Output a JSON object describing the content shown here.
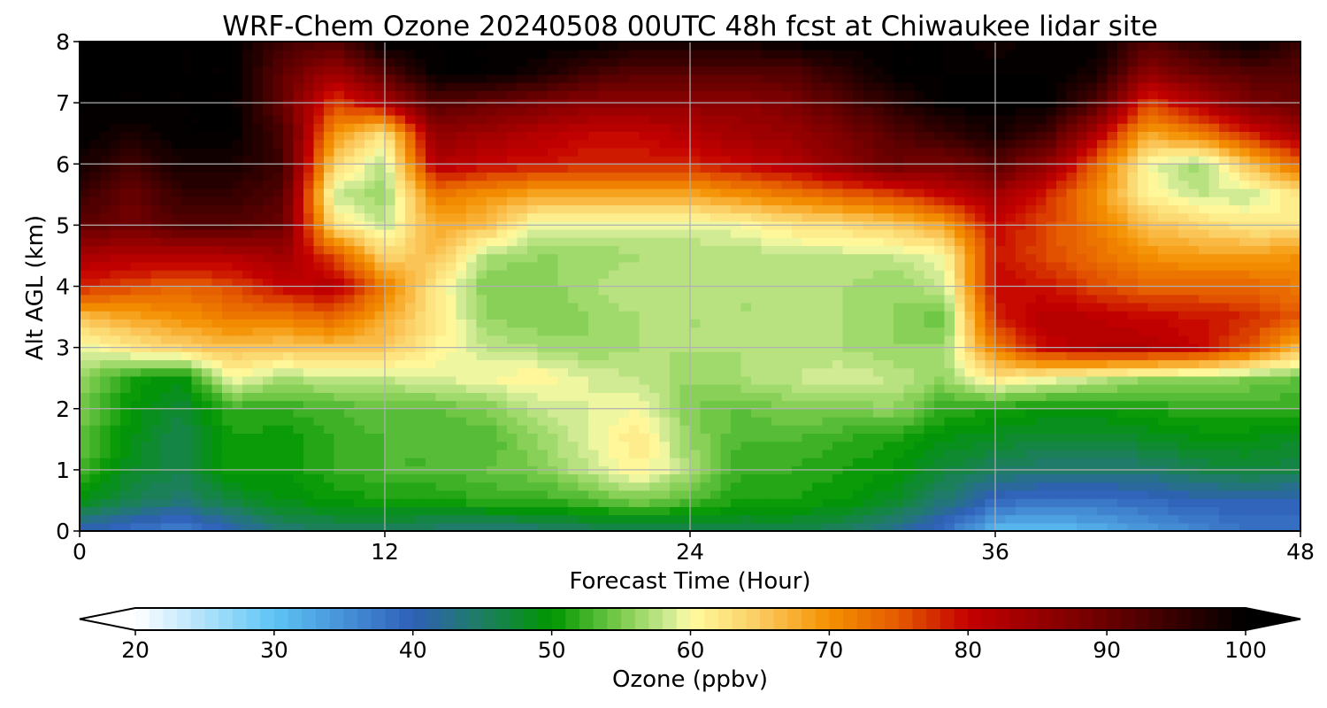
{
  "chart_data": {
    "type": "heatmap",
    "title": "WRF-Chem Ozone  20240508 00UTC 48h fcst at Chiwaukee lidar site",
    "xlabel": "Forecast Time (Hour)",
    "ylabel": "Alt AGL (km)",
    "xlim": [
      0,
      48
    ],
    "ylim": [
      0,
      8
    ],
    "x_ticks": [
      0,
      12,
      24,
      36,
      48
    ],
    "x_tick_labels": [
      "0",
      "12",
      "24",
      "36",
      "48"
    ],
    "y_ticks": [
      0,
      1,
      2,
      3,
      4,
      5,
      6,
      7,
      8
    ],
    "y_tick_labels": [
      "0",
      "1",
      "2",
      "3",
      "4",
      "5",
      "6",
      "7",
      "8"
    ],
    "grid": true,
    "colorbar": {
      "label": "Ozone  (ppbv)",
      "min": 20,
      "max": 100,
      "step": 1,
      "extend": "both",
      "ticks": [
        20,
        30,
        40,
        50,
        60,
        70,
        80,
        90,
        100
      ],
      "tick_labels": [
        "20",
        "30",
        "40",
        "50",
        "60",
        "70",
        "80",
        "90",
        "100"
      ],
      "color_stops": [
        {
          "value": 20,
          "color": "#ffffff"
        },
        {
          "value": 30,
          "color": "#5ec4f5"
        },
        {
          "value": 40,
          "color": "#2f5fb8"
        },
        {
          "value": 45,
          "color": "#1e7e62"
        },
        {
          "value": 50,
          "color": "#009600"
        },
        {
          "value": 55,
          "color": "#7ccc4e"
        },
        {
          "value": 59,
          "color": "#dcef9e"
        },
        {
          "value": 60,
          "color": "#fffca0"
        },
        {
          "value": 65,
          "color": "#fbcb60"
        },
        {
          "value": 70,
          "color": "#f49000"
        },
        {
          "value": 75,
          "color": "#e45a00"
        },
        {
          "value": 80,
          "color": "#c40000"
        },
        {
          "value": 90,
          "color": "#6a0000"
        },
        {
          "value": 100,
          "color": "#000000"
        }
      ]
    },
    "x": [
      0,
      2,
      4,
      6,
      8,
      10,
      12,
      14,
      16,
      18,
      20,
      22,
      24,
      26,
      28,
      30,
      32,
      34,
      36,
      38,
      40,
      42,
      44,
      46,
      48
    ],
    "y": [
      0,
      0.5,
      1,
      1.5,
      2,
      2.5,
      3,
      3.5,
      4,
      4.5,
      5,
      5.5,
      6,
      6.5,
      7,
      7.5,
      8
    ],
    "z": [
      [
        40,
        38,
        36,
        40,
        44,
        45,
        45,
        44,
        43,
        44,
        45,
        45,
        46,
        46,
        46,
        45,
        42,
        38,
        31,
        30,
        32,
        34,
        36,
        38,
        38
      ],
      [
        49,
        46,
        44,
        47,
        49,
        50,
        51,
        51,
        52,
        52,
        53,
        55,
        53,
        51,
        51,
        50,
        48,
        44,
        39,
        38,
        38,
        39,
        40,
        40,
        40
      ],
      [
        53,
        48,
        46,
        51,
        50,
        52,
        53,
        53,
        54,
        55,
        58,
        61,
        57,
        52,
        52,
        51,
        50,
        47,
        45,
        44,
        44,
        44,
        46,
        47,
        46
      ],
      [
        54,
        49,
        46,
        51,
        50,
        52,
        53,
        53,
        53,
        56,
        59,
        62,
        56,
        53,
        53,
        52,
        51,
        49,
        48,
        47,
        47,
        48,
        49,
        49,
        48
      ],
      [
        55,
        50,
        47,
        52,
        52,
        53,
        54,
        54,
        55,
        58,
        59,
        60,
        55,
        54,
        55,
        55,
        56,
        52,
        51,
        50,
        50,
        51,
        52,
        52,
        52
      ],
      [
        56,
        51,
        49,
        60,
        57,
        58,
        58,
        59,
        60,
        61,
        59,
        58,
        56,
        57,
        58,
        59,
        58,
        56,
        62,
        60,
        58,
        56,
        56,
        55,
        54
      ],
      [
        59,
        62,
        64,
        66,
        65,
        66,
        65,
        61,
        58,
        57,
        56,
        57,
        57,
        57,
        57,
        57,
        56,
        56,
        72,
        80,
        82,
        82,
        80,
        75,
        66
      ],
      [
        66,
        68,
        70,
        72,
        72,
        74,
        68,
        62,
        56,
        55,
        56,
        57,
        57,
        57,
        57,
        57,
        56,
        54,
        78,
        82,
        81,
        80,
        79,
        78,
        75
      ],
      [
        78,
        76,
        74,
        76,
        80,
        82,
        72,
        62,
        55,
        55,
        57,
        58,
        58,
        57,
        57,
        57,
        56,
        58,
        80,
        79,
        76,
        74,
        74,
        74,
        72
      ],
      [
        83,
        82,
        82,
        82,
        84,
        76,
        64,
        66,
        57,
        56,
        56,
        57,
        57,
        57,
        58,
        58,
        58,
        60,
        79,
        76,
        73,
        70,
        69,
        69,
        70
      ],
      [
        91,
        89,
        92,
        92,
        90,
        63,
        58,
        68,
        66,
        59,
        59,
        59,
        59,
        60,
        62,
        63,
        65,
        68,
        80,
        76,
        72,
        66,
        64,
        62,
        62
      ],
      [
        95,
        90,
        95,
        95,
        92,
        58,
        56,
        72,
        70,
        68,
        68,
        68,
        68,
        70,
        72,
        74,
        76,
        80,
        84,
        78,
        70,
        61,
        58,
        58,
        62
      ],
      [
        98,
        94,
        98,
        98,
        94,
        64,
        57,
        82,
        80,
        79,
        78,
        78,
        78,
        80,
        82,
        86,
        90,
        88,
        92,
        86,
        74,
        60,
        56,
        66,
        74
      ],
      [
        100,
        98,
        100,
        100,
        93,
        70,
        62,
        86,
        84,
        82,
        80,
        80,
        82,
        84,
        85,
        88,
        92,
        95,
        98,
        94,
        82,
        68,
        72,
        78,
        84
      ],
      [
        100,
        100,
        100,
        100,
        90,
        76,
        82,
        92,
        90,
        88,
        86,
        86,
        86,
        86,
        88,
        92,
        96,
        100,
        100,
        100,
        92,
        76,
        82,
        88,
        90
      ],
      [
        100,
        100,
        100,
        100,
        91,
        84,
        92,
        100,
        100,
        98,
        94,
        92,
        92,
        92,
        92,
        96,
        100,
        100,
        100,
        100,
        98,
        86,
        90,
        92,
        92
      ],
      [
        100,
        100,
        100,
        100,
        94,
        92,
        100,
        100,
        100,
        100,
        100,
        98,
        98,
        98,
        100,
        100,
        100,
        100,
        98,
        100,
        100,
        92,
        96,
        100,
        94
      ]
    ]
  }
}
